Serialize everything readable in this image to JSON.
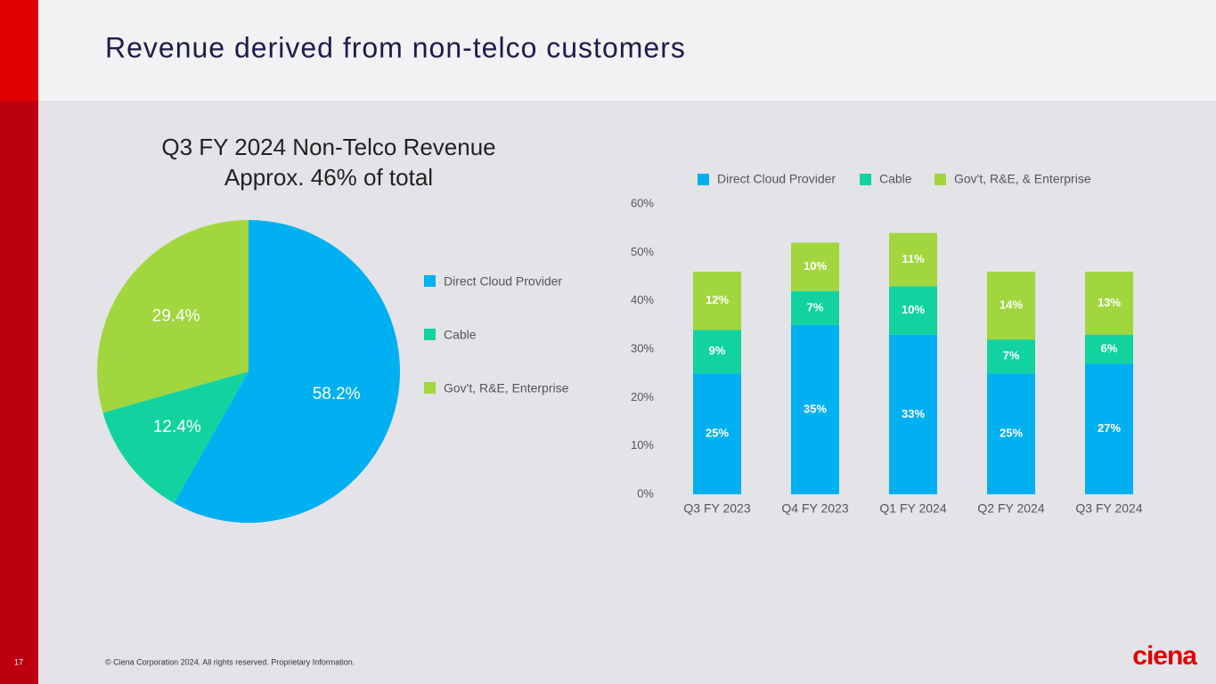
{
  "slide": {
    "title": "Revenue derived from non-telco customers",
    "page_number": "17",
    "footer": "© Ciena Corporation 2024. All rights reserved. Proprietary Information.",
    "logo": "ciena"
  },
  "chart_data": [
    {
      "type": "pie",
      "title": "Q3 FY 2024 Non-Telco Revenue",
      "subtitle": "Approx. 46% of total",
      "categories": [
        "Direct Cloud Provider",
        "Cable",
        "Gov't, R&E, Enterprise"
      ],
      "values": [
        58.2,
        12.4,
        29.4
      ],
      "value_labels": [
        "58.2%",
        "12.4%",
        "29.4%"
      ],
      "colors": [
        "#00b0f0",
        "#12d3a0",
        "#a2d63f"
      ],
      "legend": "right"
    },
    {
      "type": "stacked-bar",
      "categories": [
        "Q3 FY 2023",
        "Q4 FY 2023",
        "Q1 FY 2024",
        "Q2 FY 2024",
        "Q3 FY 2024"
      ],
      "series": [
        {
          "name": "Direct Cloud Provider",
          "color": "#00b0f0",
          "values": [
            25,
            35,
            33,
            25,
            27
          ],
          "value_labels": [
            "25%",
            "35%",
            "33%",
            "25%",
            "27%"
          ]
        },
        {
          "name": "Cable",
          "color": "#12d3a0",
          "values": [
            9,
            7,
            10,
            7,
            6
          ],
          "value_labels": [
            "9%",
            "7%",
            "10%",
            "7%",
            "6%"
          ]
        },
        {
          "name": "Gov't, R&E, & Enterprise",
          "color": "#a2d63f",
          "values": [
            12,
            10,
            11,
            14,
            13
          ],
          "value_labels": [
            "12%",
            "10%",
            "11%",
            "14%",
            "13%"
          ]
        }
      ],
      "ylim": [
        0,
        60
      ],
      "yticks": [
        {
          "value": 0,
          "label": "0%"
        },
        {
          "value": 10,
          "label": "10%"
        },
        {
          "value": 20,
          "label": "20%"
        },
        {
          "value": 30,
          "label": "30%"
        },
        {
          "value": 40,
          "label": "40%"
        },
        {
          "value": 50,
          "label": "50%"
        },
        {
          "value": 60,
          "label": "60%"
        }
      ],
      "grid": false,
      "legend": "top"
    }
  ]
}
